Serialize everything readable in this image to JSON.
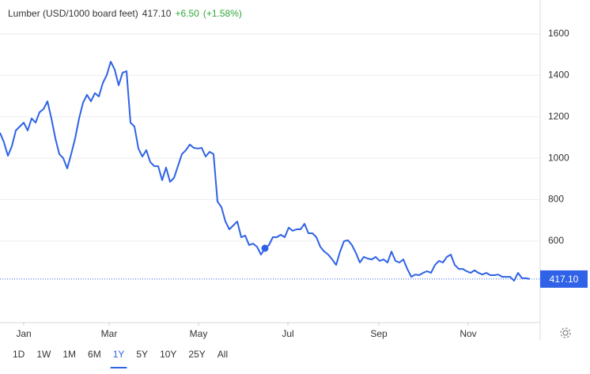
{
  "chart_data": {
    "type": "line",
    "title": "Lumber (USD/1000 board feet)",
    "price": "417.10",
    "change": "+6.50",
    "change_pct": "(+1.58%)",
    "series": [
      {
        "name": "Lumber",
        "color": "#2f62e6",
        "values": [
          1123,
          1077,
          1012,
          1058,
          1134,
          1153,
          1172,
          1134,
          1192,
          1172,
          1222,
          1237,
          1275,
          1192,
          1096,
          1020,
          1000,
          951,
          1020,
          1096,
          1192,
          1268,
          1306,
          1275,
          1314,
          1298,
          1363,
          1402,
          1466,
          1428,
          1352,
          1413,
          1420,
          1172,
          1153,
          1047,
          1008,
          1039,
          982,
          962,
          962,
          894,
          955,
          886,
          905,
          962,
          1020,
          1039,
          1066,
          1050,
          1047,
          1050,
          1008,
          1031,
          1020,
          791,
          764,
          695,
          657,
          676,
          695,
          619,
          627,
          581,
          588,
          573,
          535,
          566,
          581,
          619,
          619,
          631,
          619,
          665,
          650,
          657,
          657,
          684,
          638,
          638,
          619,
          573,
          550,
          535,
          512,
          485,
          550,
          600,
          604,
          581,
          543,
          497,
          524,
          516,
          512,
          524,
          505,
          512,
          497,
          550,
          505,
          497,
          512,
          466,
          428,
          439,
          436,
          447,
          455,
          447,
          485,
          505,
          497,
          524,
          535,
          485,
          466,
          466,
          455,
          447,
          459,
          447,
          439,
          447,
          436,
          436,
          439,
          428,
          428,
          428,
          409,
          447,
          421,
          421,
          417.1
        ]
      }
    ],
    "xlim": [
      0,
      134
    ],
    "xticks": [
      {
        "value": 6,
        "label": "Jan"
      },
      {
        "value": 27.6,
        "label": "Mar"
      },
      {
        "value": 50.2,
        "label": "May"
      },
      {
        "value": 72.8,
        "label": "Jul"
      },
      {
        "value": 95.8,
        "label": "Sep"
      },
      {
        "value": 118.4,
        "label": "Nov"
      }
    ],
    "ylim": [
      207,
      1733
    ],
    "yticks": [
      600,
      800,
      1000,
      1200,
      1400,
      1600
    ],
    "grid": true,
    "ranges": [
      "1D",
      "1W",
      "1M",
      "6M",
      "1Y",
      "5Y",
      "10Y",
      "25Y",
      "All"
    ],
    "selected_range": "1Y"
  }
}
